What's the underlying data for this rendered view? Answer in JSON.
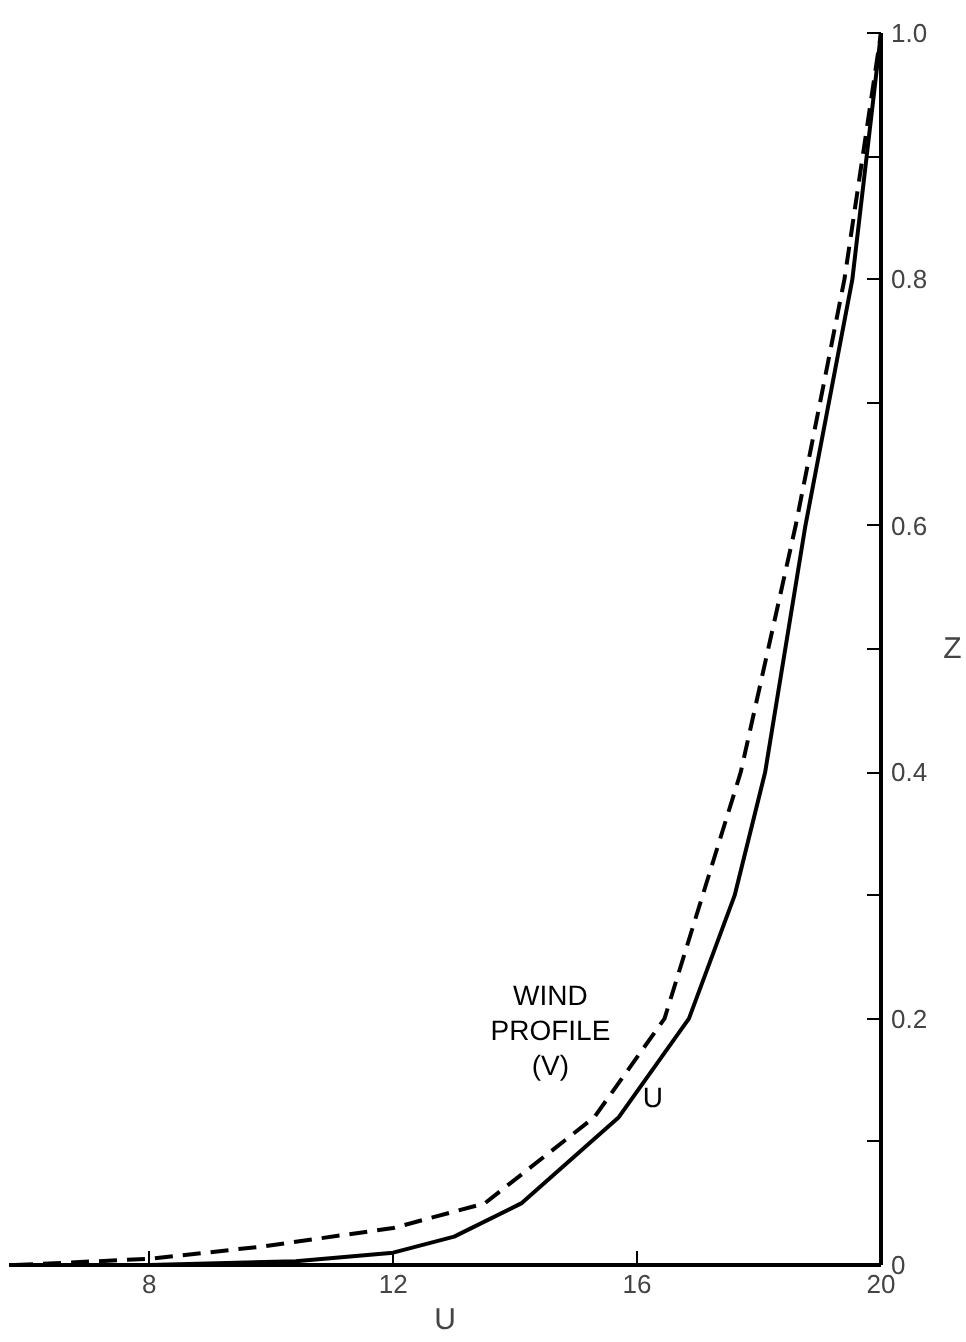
{
  "chart_data": {
    "type": "line",
    "xlabel": "U",
    "ylabel": "Z",
    "xlim": [
      5.7,
      20
    ],
    "ylim": [
      0,
      1.0
    ],
    "xticks": [
      8,
      12,
      16,
      20
    ],
    "yticks": [
      0,
      {
        "value": 0.1,
        "label": null
      },
      0.2,
      {
        "value": 0.3,
        "label": null
      },
      0.4,
      {
        "value": 0.5,
        "label": null
      },
      0.6,
      {
        "value": 0.7,
        "label": null
      },
      0.8,
      {
        "value": 0.9,
        "label": null
      },
      {
        "value": 1.0,
        "label": "1.0"
      }
    ],
    "grid": false,
    "marker": "none",
    "series": [
      {
        "name": "U",
        "color": "#000000",
        "line_style": "solid",
        "x": [
          5.8,
          8,
          10.4,
          12,
          13,
          14.1,
          15.7,
          16.85,
          17.6,
          18.1,
          18.76,
          19.53,
          20
        ],
        "values": [
          0,
          0,
          0.003,
          0.01,
          0.023,
          0.05,
          0.12,
          0.2,
          0.3,
          0.4,
          0.6,
          0.8,
          1.0
        ]
      },
      {
        "name": "WIND\nPROFILE\n(V)",
        "color": "#000000",
        "line_style": "dashed",
        "x": [
          5.8,
          8,
          9.85,
          12,
          13.5,
          15.3,
          16.45,
          17.7,
          18.6,
          19.4,
          20
        ],
        "values": [
          0,
          0.005,
          0.015,
          0.03,
          0.05,
          0.12,
          0.2,
          0.4,
          0.6,
          0.8,
          1.0
        ]
      }
    ]
  }
}
